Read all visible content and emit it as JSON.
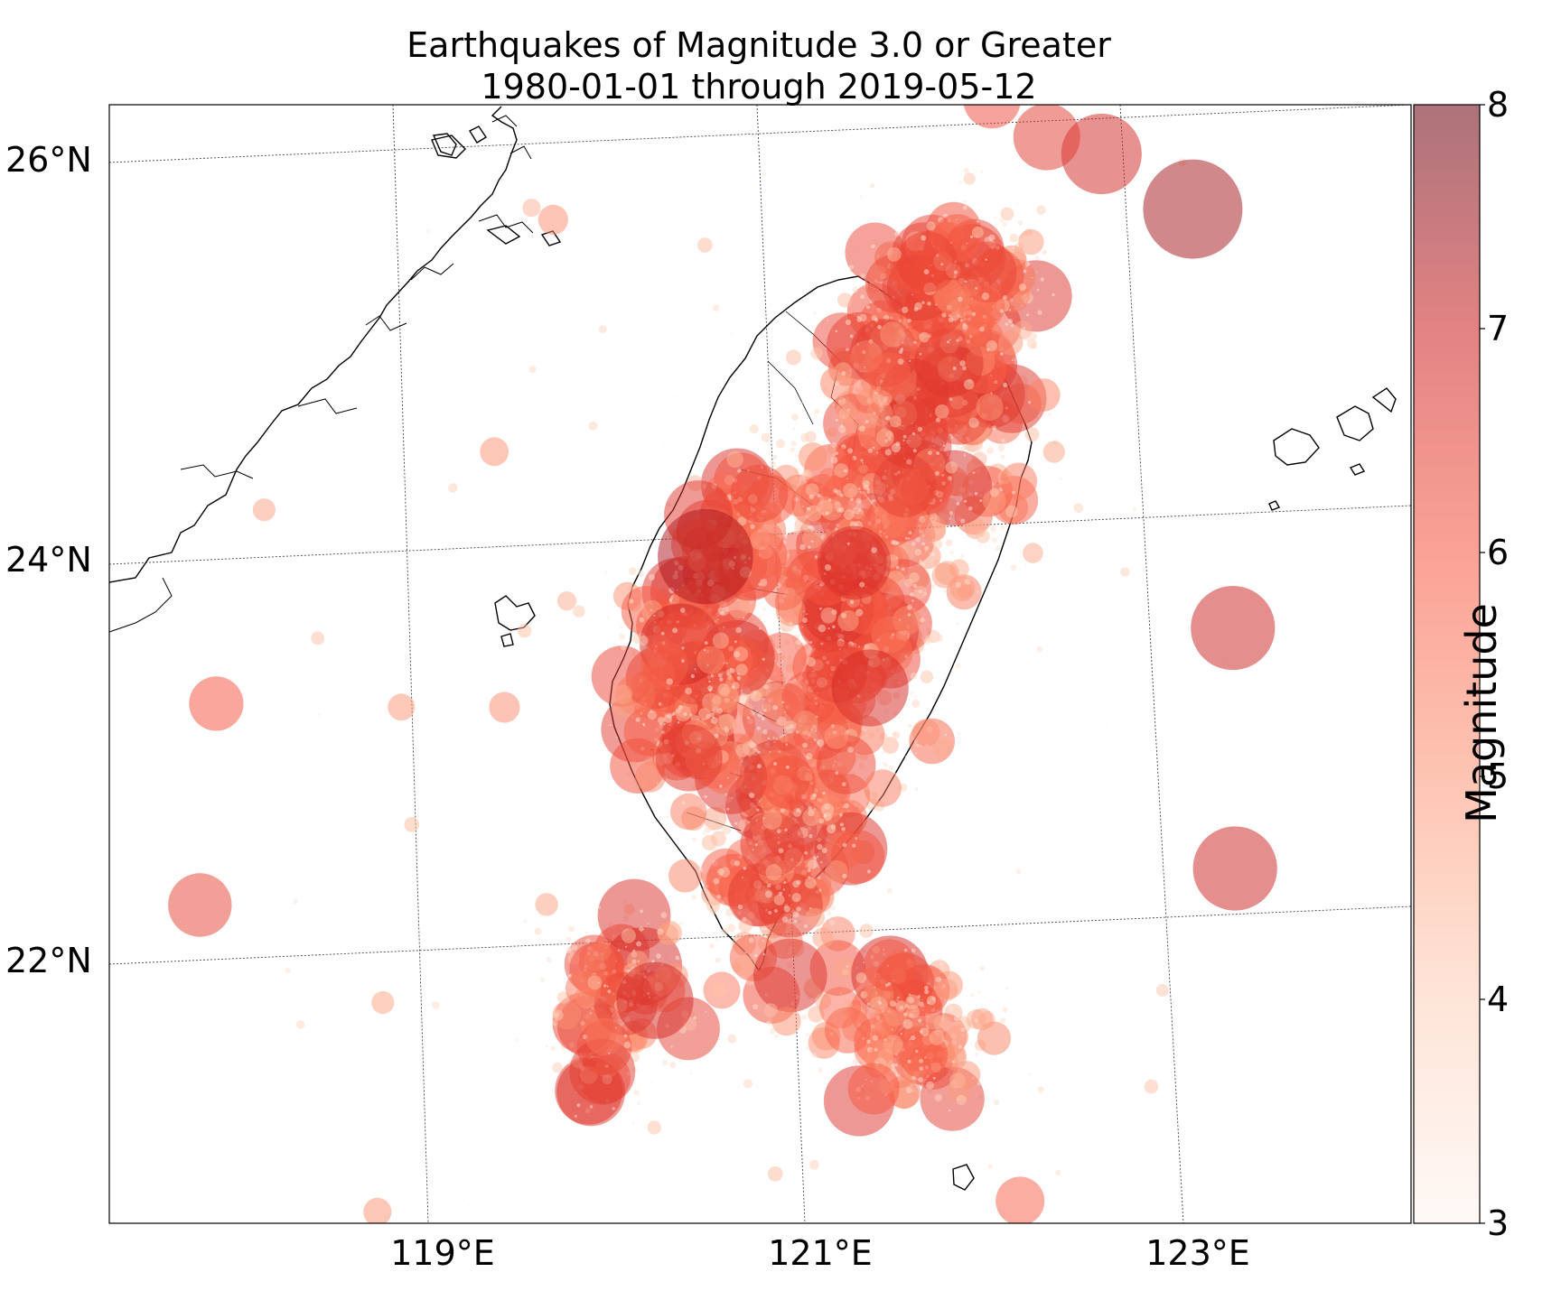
{
  "title": [
    "Earthquakes of Magnitude 3.0 or Greater",
    "1980-01-01 through 2019-05-12"
  ],
  "colorbar": {
    "label": "Magnitude",
    "ticks": [
      "3",
      "4",
      "5",
      "6",
      "7",
      "8"
    ],
    "colors": [
      "#fff5f0",
      "#fdd0b8",
      "#fc9474",
      "#f7553e",
      "#cb1d1e",
      "#67000d"
    ]
  },
  "lat_labels": [
    "26°N",
    "24°N",
    "22°N"
  ],
  "lon_labels": [
    "119°E",
    "121°E",
    "123°E"
  ],
  "colors": {
    "marker_low": "#fde0d2",
    "marker_high": "#b31b1b",
    "coast": "#000000",
    "grid": "#444444"
  },
  "chart_data": {
    "type": "scatter",
    "x_label": "",
    "y_label": "",
    "x_range": [
      118,
      124
    ],
    "y_range": [
      20.5,
      26.3
    ],
    "size_encoding": "magnitude",
    "color_encoding": "magnitude",
    "notable_points": [
      {
        "lon": 120.7,
        "lat": 23.9,
        "mag": 7.3
      },
      {
        "lon": 123.4,
        "lat": 25.5,
        "mag": 7.4
      },
      {
        "lon": 122.9,
        "lat": 25.8,
        "mag": 6.9
      },
      {
        "lon": 122.6,
        "lat": 25.9,
        "mag": 6.5
      },
      {
        "lon": 122.3,
        "lat": 26.1,
        "mag": 6.2
      },
      {
        "lon": 123.6,
        "lat": 23.4,
        "mag": 7.0
      },
      {
        "lon": 123.6,
        "lat": 22.2,
        "mag": 7.0
      },
      {
        "lon": 120.4,
        "lat": 21.7,
        "mag": 6.8
      },
      {
        "lon": 121.6,
        "lat": 23.2,
        "mag": 6.8
      },
      {
        "lon": 120.6,
        "lat": 22.9,
        "mag": 6.5
      },
      {
        "lon": 118.0,
        "lat": 23.3,
        "mag": 6.1
      },
      {
        "lon": 117.9,
        "lat": 22.3,
        "mag": 6.4
      },
      {
        "lon": 121.8,
        "lat": 24.2,
        "mag": 6.4
      },
      {
        "lon": 121.0,
        "lat": 24.2,
        "mag": 6.2
      },
      {
        "lon": 121.6,
        "lat": 21.2,
        "mag": 6.0
      },
      {
        "lon": 122.4,
        "lat": 20.6,
        "mag": 5.9
      },
      {
        "lon": 119.4,
        "lat": 20.5,
        "mag": 5.9
      }
    ]
  }
}
